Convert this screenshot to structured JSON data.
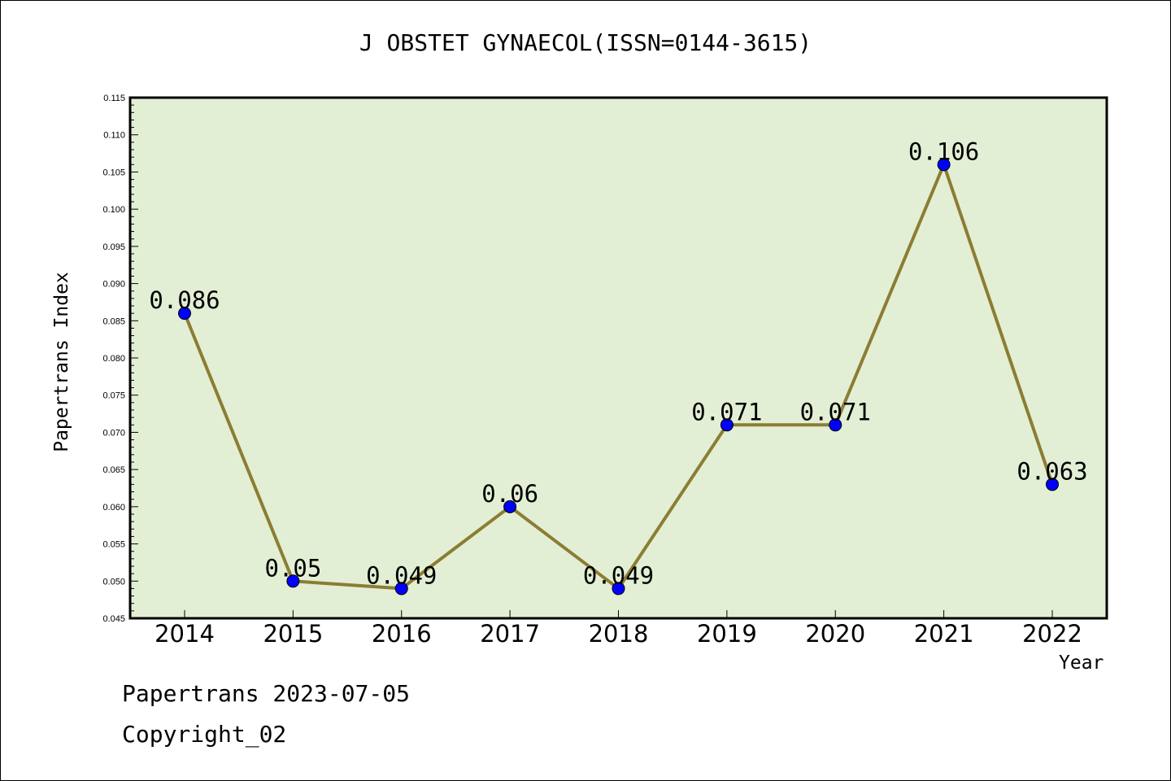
{
  "title": "J OBSTET GYNAECOL(ISSN=0144-3615)",
  "footer": {
    "line1": "Papertrans 2023-07-05",
    "line2": "Copyright_02"
  },
  "colors": {
    "plot_background": "#e2efd5",
    "line": "#8b7d33",
    "marker": "#0000ff"
  },
  "chart_data": {
    "type": "line",
    "title": "J OBSTET GYNAECOL(ISSN=0144-3615)",
    "xlabel": "Year",
    "ylabel": "Papertrans Index",
    "categories": [
      "2014",
      "2015",
      "2016",
      "2017",
      "2018",
      "2019",
      "2020",
      "2021",
      "2022"
    ],
    "values": [
      0.086,
      0.05,
      0.049,
      0.06,
      0.049,
      0.071,
      0.071,
      0.106,
      0.063
    ],
    "data_labels": [
      "0.086",
      "0.05",
      "0.049",
      "0.06",
      "0.049",
      "0.071",
      "0.071",
      "0.106",
      "0.063"
    ],
    "ylim": [
      0.045,
      0.115
    ],
    "y_ticks": [
      "0.045",
      "0.050",
      "0.055",
      "0.060",
      "0.065",
      "0.070",
      "0.075",
      "0.080",
      "0.085",
      "0.090",
      "0.095",
      "0.100",
      "0.105",
      "0.110",
      "0.115"
    ],
    "grid": false,
    "legend": "none"
  }
}
